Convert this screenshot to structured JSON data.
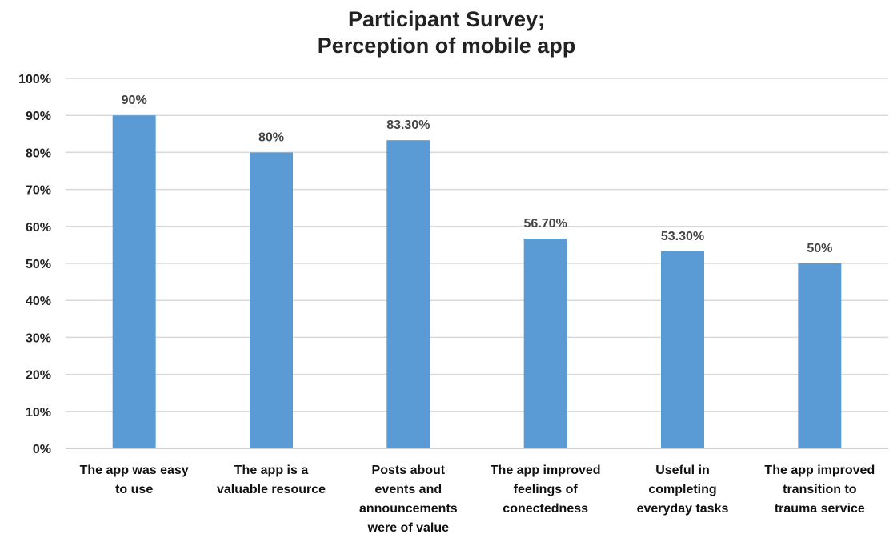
{
  "chart_data": {
    "type": "bar",
    "title_lines": [
      "Participant Survey;",
      "Perception of mobile app"
    ],
    "categories": [
      [
        "The app was easy",
        "to use"
      ],
      [
        "The app is a",
        "valuable resource"
      ],
      [
        "Posts about",
        "events and",
        "announcements",
        "were of value"
      ],
      [
        "The app improved",
        "feelings of",
        "conectedness"
      ],
      [
        "Useful in",
        "completing",
        "everyday tasks"
      ],
      [
        "The app improved",
        "transition to",
        "trauma service"
      ]
    ],
    "values": [
      90,
      80,
      83.3,
      56.7,
      53.3,
      50
    ],
    "data_labels": [
      "90%",
      "80%",
      "83.30%",
      "56.70%",
      "53.30%",
      "50%"
    ],
    "ylim": [
      0,
      100
    ],
    "yticks": [
      "0%",
      "10%",
      "20%",
      "30%",
      "40%",
      "50%",
      "60%",
      "70%",
      "80%",
      "90%",
      "100%"
    ],
    "grid": true,
    "xlabel": "",
    "ylabel": "",
    "bar_color": "#5b9bd5",
    "grid_color": "#d9d9d9"
  }
}
